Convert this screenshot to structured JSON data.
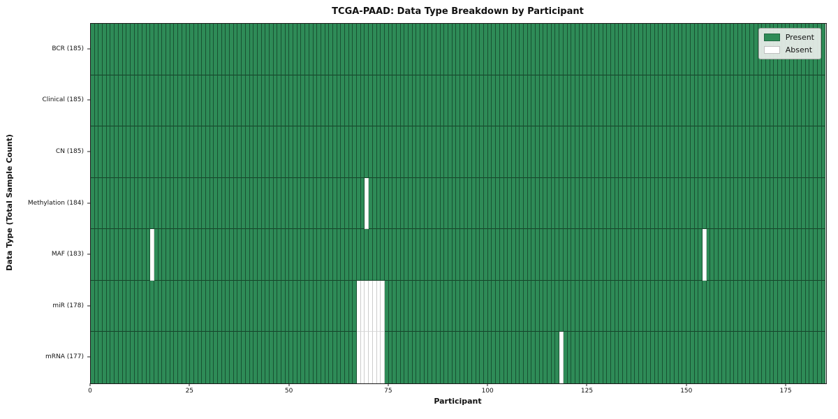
{
  "chart_data": {
    "type": "heatmap",
    "title": "TCGA-PAAD: Data Type Breakdown by Participant",
    "xlabel": "Participant",
    "ylabel": "Data Type (Total Sample Count)",
    "x_ticks": [
      0,
      25,
      50,
      75,
      100,
      125,
      150,
      175
    ],
    "x_range": [
      0,
      185
    ],
    "n_participants": 185,
    "grid": false,
    "legend_position": "upper right",
    "rows": [
      {
        "label": "BCR (185)",
        "data_type": "BCR",
        "present_count": 185,
        "absent_participants": []
      },
      {
        "label": "Clinical (185)",
        "data_type": "Clinical",
        "present_count": 185,
        "absent_participants": []
      },
      {
        "label": "CN (185)",
        "data_type": "CN",
        "present_count": 185,
        "absent_participants": []
      },
      {
        "label": "Methylation (184)",
        "data_type": "Methylation",
        "present_count": 184,
        "absent_participants": [
          69
        ]
      },
      {
        "label": "MAF (183)",
        "data_type": "MAF",
        "present_count": 183,
        "absent_participants": [
          15,
          154
        ]
      },
      {
        "label": "miR (178)",
        "data_type": "miR",
        "present_count": 178,
        "absent_participants": [
          67,
          68,
          69,
          70,
          71,
          72,
          73
        ]
      },
      {
        "label": "mRNA (177)",
        "data_type": "mRNA",
        "present_count": 177,
        "absent_participants": [
          67,
          68,
          69,
          70,
          71,
          72,
          73,
          118
        ]
      }
    ],
    "legend": [
      {
        "label": "Present",
        "color": "#2e8b57"
      },
      {
        "label": "Absent",
        "color": "#ffffff"
      }
    ],
    "colors": {
      "present": "#2e8b57",
      "absent": "#ffffff",
      "spine": "#1a1a1a"
    }
  }
}
